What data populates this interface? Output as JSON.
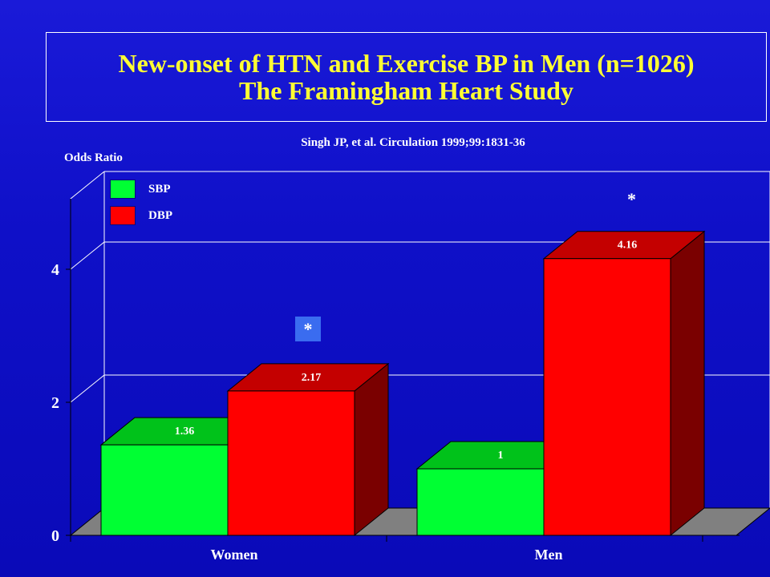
{
  "title": {
    "line1": "New-onset of HTN and Exercise BP in Men (n=1026)",
    "line2": "The Framingham Heart Study"
  },
  "citation": "Singh JP, et al. Circulation 1999;99:1831-36",
  "colors": {
    "background": "#1212cc",
    "title": "#ffff33",
    "sbp": "#00ff33",
    "dbp": "#ff0000",
    "floor": "#808080",
    "star_box": "#3a6cf0"
  },
  "annotations": {
    "women_star": "*",
    "men_star": "*"
  },
  "chart_data": {
    "type": "bar",
    "title": "",
    "xlabel": "",
    "ylabel": "Odds Ratio",
    "categories": [
      "Women",
      "Men"
    ],
    "series": [
      {
        "name": "SBP",
        "values": [
          1.36,
          1
        ]
      },
      {
        "name": "DBP",
        "values": [
          2.17,
          4.16
        ]
      }
    ],
    "data_labels": [
      [
        "1.36",
        "1"
      ],
      [
        "2.17",
        "4.16"
      ]
    ],
    "yticks": [
      0,
      2,
      4
    ],
    "ylim": [
      0,
      5
    ],
    "grid": true,
    "legend": "top-left",
    "three_d": true
  }
}
